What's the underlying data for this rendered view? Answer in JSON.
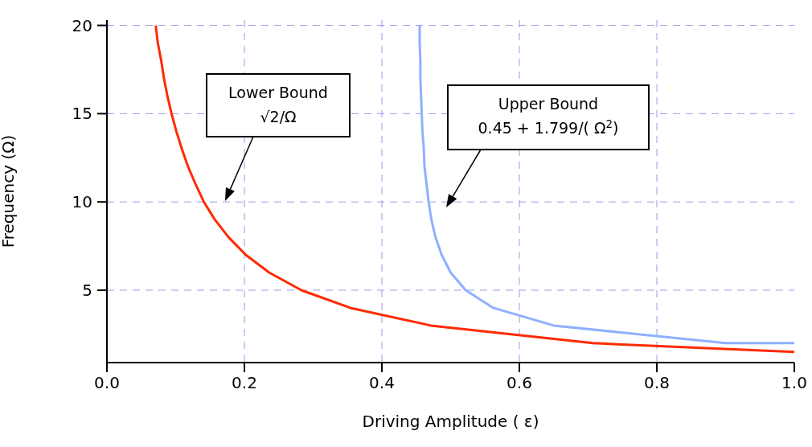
{
  "chart_data": {
    "type": "line",
    "xlabel": "Driving Amplitude ( ε)",
    "ylabel": "Frequency (Ω)",
    "xlim": [
      0,
      1
    ],
    "ylim": [
      0.9,
      20.3
    ],
    "xticks": [
      {
        "value": 0,
        "label": "0.0"
      },
      {
        "value": 0.2,
        "label": "0.2"
      },
      {
        "value": 0.4,
        "label": "0.4"
      },
      {
        "value": 0.6,
        "label": "0.6"
      },
      {
        "value": 0.8,
        "label": "0.8"
      },
      {
        "value": 1,
        "label": "1.0"
      }
    ],
    "yticks": [
      5,
      10,
      15,
      20
    ],
    "grid": true,
    "line_style": "solid",
    "marker": "none",
    "series": [
      {
        "color": "#ff2a00",
        "x": [
          0.071,
          0.074,
          0.079,
          0.083,
          0.088,
          0.094,
          0.101,
          0.109,
          0.118,
          0.129,
          0.141,
          0.157,
          0.177,
          0.202,
          0.236,
          0.283,
          0.354,
          0.471,
          0.707,
          1.0
        ],
        "values": [
          20,
          19,
          18,
          17,
          16,
          15,
          14,
          13,
          12,
          11,
          10,
          9,
          8,
          7,
          6,
          5,
          4,
          3,
          2,
          1.5
        ]
      },
      {
        "color": "#8fb0ff",
        "x": [
          0.455,
          0.455,
          0.456,
          0.456,
          0.457,
          0.458,
          0.459,
          0.461,
          0.462,
          0.465,
          0.468,
          0.472,
          0.478,
          0.487,
          0.5,
          0.522,
          0.562,
          0.65,
          0.9,
          1.0
        ],
        "values": [
          20,
          19,
          18,
          17,
          16,
          15,
          14,
          13,
          12,
          11,
          10,
          9,
          8,
          7,
          6,
          5,
          4,
          3,
          2,
          2
        ]
      }
    ],
    "annotations": [
      "Lower Bound\n√2/Ω",
      "Upper Bound\n0.45 + 1.799/( Ω$^{2}$)"
    ]
  }
}
